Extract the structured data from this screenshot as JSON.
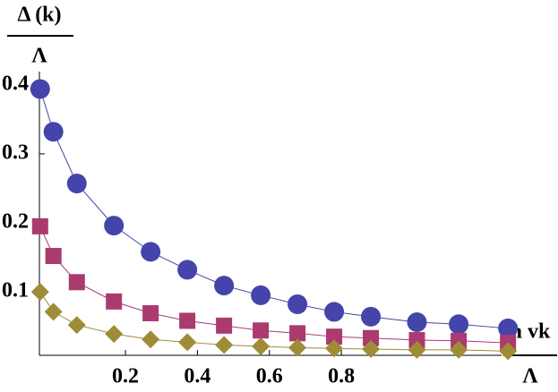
{
  "chart_data": {
    "type": "line",
    "y_label_numerator": "Δ (k)",
    "y_label_denominator": "Λ",
    "x_label_numerator": "ħ vk",
    "x_label_denominator": "Λ",
    "x": [
      -0.037,
      0,
      0.065,
      0.168,
      0.27,
      0.372,
      0.474,
      0.576,
      0.678,
      0.78,
      0.882,
      1.01,
      1.126,
      1.263
    ],
    "series": [
      {
        "marker": "circle",
        "color": "#4444aa",
        "values": [
          0.394,
          0.332,
          0.257,
          0.196,
          0.158,
          0.132,
          0.109,
          0.095,
          0.082,
          0.071,
          0.064,
          0.056,
          0.053,
          0.047
        ]
      },
      {
        "marker": "square",
        "color": "#aa3a70",
        "values": [
          0.195,
          0.152,
          0.114,
          0.086,
          0.069,
          0.058,
          0.051,
          0.044,
          0.04,
          0.035,
          0.033,
          0.03,
          0.029,
          0.026
        ]
      },
      {
        "marker": "diamond",
        "color": "#9e8c36",
        "values": [
          0.1,
          0.071,
          0.052,
          0.039,
          0.031,
          0.027,
          0.023,
          0.021,
          0.019,
          0.018,
          0.017,
          0.016,
          0.016,
          0.014
        ]
      }
    ],
    "xlim": [
      -0.039,
      1.402
    ],
    "ylim": [
      0.008,
      0.523
    ],
    "xticks": [
      0.2,
      0.4,
      0.6,
      0.8
    ],
    "yticks": [
      0.1,
      0.2,
      0.3,
      0.4
    ]
  }
}
